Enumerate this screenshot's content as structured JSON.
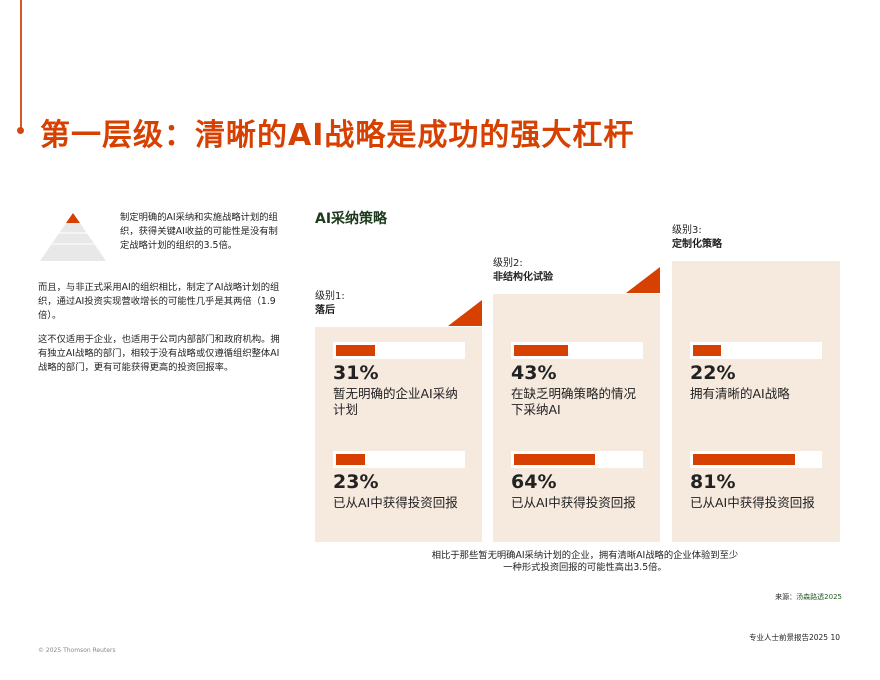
{
  "title": "第一层级：清晰的AI战略是成功的强大杠杆",
  "intro": {
    "p1": "制定明确的AI采纳和实施战略计划的组织，获得关键AI收益的可能性是没有制定战略计划的组织的3.5倍。",
    "p2": "而且，与非正式采用AI的组织相比，制定了AI战略计划的组织，通过AI投资实现营收增长的可能性几乎是其两倍（1.9倍）。",
    "p3": "这不仅适用于企业，也适用于公司内部部门和政府机构。拥有独立AI战略的部门，相较于没有战略或仅遵循组织整体AI战略的部门，更有可能获得更高的投资回报率。"
  },
  "chart": {
    "title": "AI采纳策略",
    "accent": "#d64000",
    "card_bg": "#f6e9de",
    "levels": [
      {
        "label": "级别1:",
        "name": "落后",
        "stats": [
          {
            "value": 31,
            "pct": "31%",
            "desc": "暂无明确的企业AI采纳计划"
          },
          {
            "value": 23,
            "pct": "23%",
            "desc": "已从AI中获得投资回报"
          }
        ]
      },
      {
        "label": "级别2:",
        "name": "非结构化试验",
        "stats": [
          {
            "value": 43,
            "pct": "43%",
            "desc": "在缺乏明确策略的情况下采纳AI"
          },
          {
            "value": 64,
            "pct": "64%",
            "desc": "已从AI中获得投资回报"
          }
        ]
      },
      {
        "label": "级别3:",
        "name": "定制化策略",
        "stats": [
          {
            "value": 22,
            "pct": "22%",
            "desc": "拥有清晰的AI战略"
          },
          {
            "value": 81,
            "pct": "81%",
            "desc": "已从AI中获得投资回报"
          }
        ]
      }
    ],
    "note": "相比于那些暂无明确AI采纳计划的企业，拥有清晰AI战略的企业体验到至少一种形式投资回报的可能性高出3.5倍。",
    "source_label": "来源：",
    "source": "汤森路透2025"
  },
  "footer": {
    "report": "专业人士前景报告2025 10",
    "copyright": "© 2025 Thomson Reuters"
  }
}
